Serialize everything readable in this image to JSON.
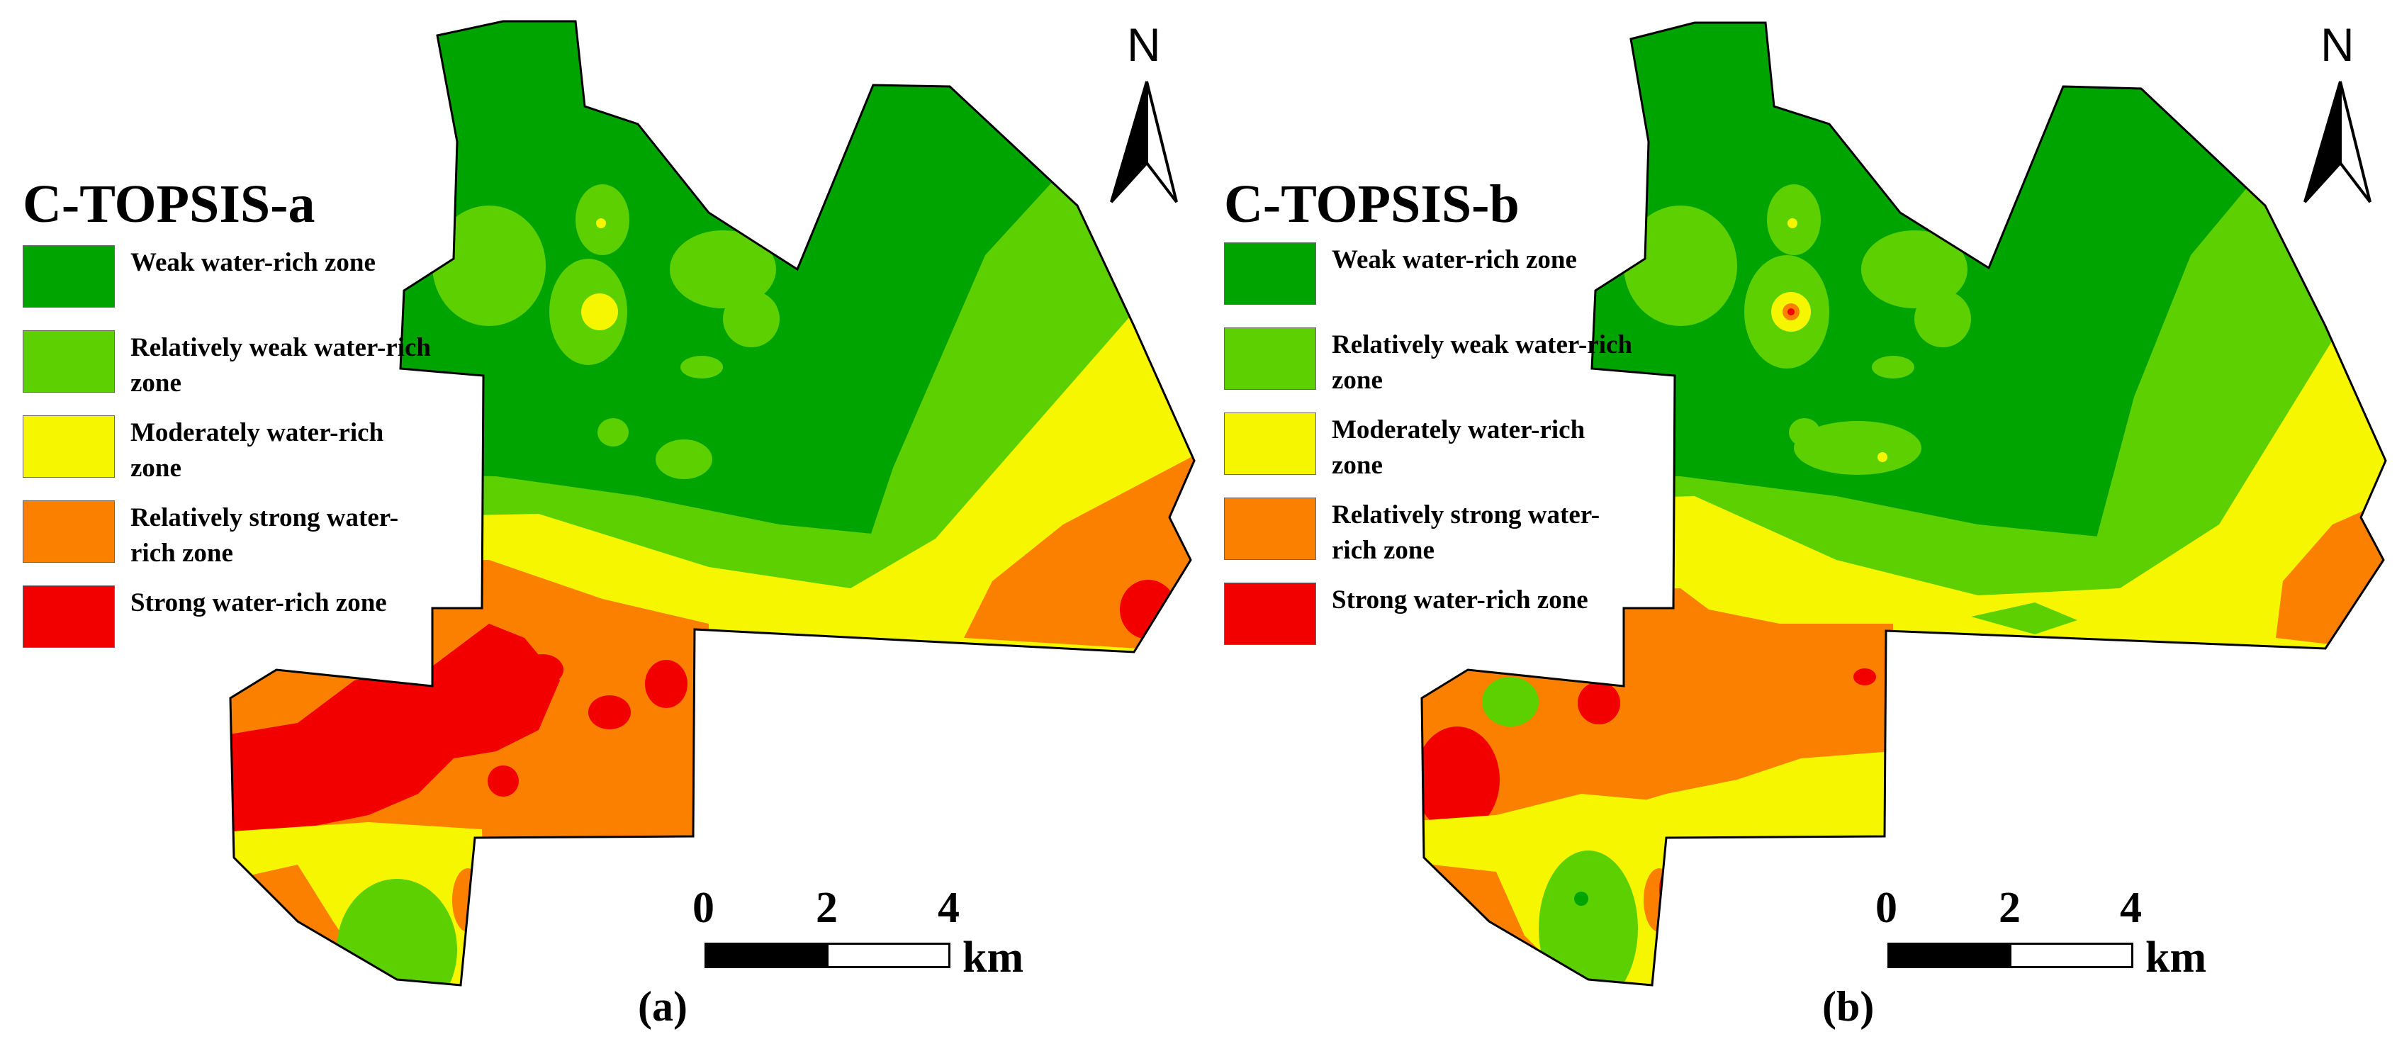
{
  "colors": {
    "weak": "#00a400",
    "relatively_weak": "#5cd000",
    "moderate": "#f6f600",
    "relatively_strong": "#fb8000",
    "strong": "#f20000"
  },
  "legend": {
    "items": [
      {
        "key": "weak",
        "label": "Weak water-rich zone",
        "color": "#00a400"
      },
      {
        "key": "relatively_weak",
        "label": "Relatively weak water-rich zone",
        "color": "#5cd000"
      },
      {
        "key": "moderate",
        "label": "Moderately water-rich zone",
        "color": "#f6f600"
      },
      {
        "key": "relatively_strong",
        "label": "Relatively strong water-rich zone",
        "color": "#fb8000"
      },
      {
        "key": "strong",
        "label": "Strong water-rich zone",
        "color": "#f20000"
      }
    ]
  },
  "panels": [
    {
      "id": "a",
      "title": "C-TOPSIS-a",
      "caption": "(a)"
    },
    {
      "id": "b",
      "title": "C-TOPSIS-b",
      "caption": "(b)"
    }
  ],
  "north_arrow": {
    "label": "N"
  },
  "scale_bar": {
    "ticks": [
      "0",
      "2",
      "4"
    ],
    "unit": "km"
  }
}
